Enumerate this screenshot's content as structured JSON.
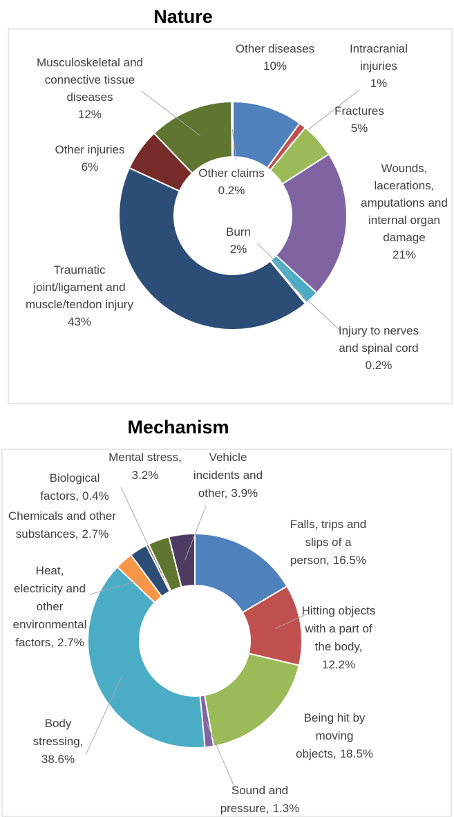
{
  "chart_data": [
    {
      "type": "donut",
      "title": "Nature",
      "categories": [
        "Other diseases",
        "Intracranial\ninjuries",
        "Fractures",
        "Wounds,\nlacerations,\namputations and\ninternal organ\ndamage",
        "Burn",
        "Injury to nerves\nand spinal cord",
        "Traumatic\njoint/ligament and\nmuscle/tendon injury",
        "Other injuries",
        "Musculoskeletal and\nconnective tissue\ndiseases",
        "Other claims"
      ],
      "values": [
        10,
        1,
        5,
        21,
        2,
        0.2,
        43,
        6,
        12,
        0.2
      ],
      "value_labels": [
        "10%",
        "1%",
        "5%",
        "21%",
        "2%",
        "0.2%",
        "43%",
        "6%",
        "12%",
        "0.2%"
      ],
      "colors": [
        "#4f81bd",
        "#c0504d",
        "#9bbb59",
        "#8064a2",
        "#4bacc6",
        "#f79646",
        "#2c4d75",
        "#772c2a",
        "#5f7530",
        "#4d3b62"
      ]
    },
    {
      "type": "donut",
      "title": "Mechanism",
      "categories": [
        "Falls, trips and\nslips of a\nperson,",
        "Hitting objects\nwith a part of\nthe body,",
        "Being hit by\nmoving\nobjects,",
        "Sound and\npressure,",
        "Body\nstressing,",
        "Heat,\nelectricity and\nother\nenvironmental\nfactors,",
        "Chemicals and other\nsubstances,",
        "Biological\nfactors,",
        "Mental stress,",
        "Vehicle\nincidents and\nother,"
      ],
      "values": [
        16.5,
        12.2,
        18.5,
        1.3,
        38.6,
        2.7,
        2.7,
        0.4,
        3.2,
        3.9
      ],
      "value_labels": [
        "16.5%",
        "12.2%",
        "18.5%",
        "1.3%",
        "38.6%",
        "2.7%",
        "2.7%",
        "0.4%",
        "3.2%",
        "3.9%"
      ],
      "colors": [
        "#4f81bd",
        "#c0504d",
        "#9bbb59",
        "#8064a2",
        "#4bacc6",
        "#f79646",
        "#2c4d75",
        "#772c2a",
        "#5f7530",
        "#4d3b62"
      ]
    }
  ]
}
